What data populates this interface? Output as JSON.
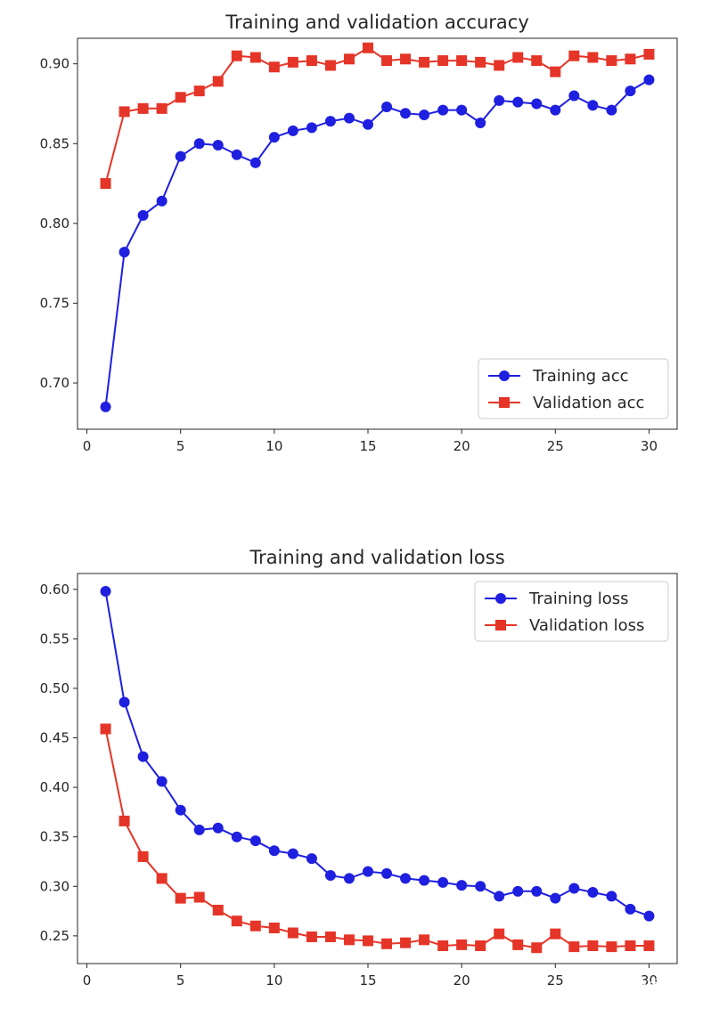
{
  "chart_data": [
    {
      "type": "line",
      "title": "Training and validation accuracy",
      "xlabel": "",
      "ylabel": "",
      "xlim": [
        -0.5,
        31.5
      ],
      "ylim": [
        0.671,
        0.916
      ],
      "xticks": [
        0,
        5,
        10,
        15,
        20,
        25,
        30
      ],
      "yticks": [
        0.7,
        0.75,
        0.8,
        0.85,
        0.9
      ],
      "ytick_labels": [
        "0.70",
        "0.75",
        "0.80",
        "0.85",
        "0.90"
      ],
      "legend_position": "lower-right",
      "x": [
        1,
        2,
        3,
        4,
        5,
        6,
        7,
        8,
        9,
        10,
        11,
        12,
        13,
        14,
        15,
        16,
        17,
        18,
        19,
        20,
        21,
        22,
        23,
        24,
        25,
        26,
        27,
        28,
        29,
        30
      ],
      "series": [
        {
          "name": "Training acc",
          "color": "#1f1fe0",
          "marker": "circle",
          "values": [
            0.685,
            0.782,
            0.805,
            0.814,
            0.842,
            0.85,
            0.849,
            0.843,
            0.838,
            0.854,
            0.858,
            0.86,
            0.864,
            0.866,
            0.862,
            0.873,
            0.869,
            0.868,
            0.871,
            0.871,
            0.863,
            0.877,
            0.876,
            0.875,
            0.871,
            0.88,
            0.874,
            0.871,
            0.883,
            0.89
          ]
        },
        {
          "name": "Validation acc",
          "color": "#e53528",
          "marker": "square",
          "values": [
            0.825,
            0.87,
            0.872,
            0.872,
            0.879,
            0.883,
            0.889,
            0.905,
            0.904,
            0.898,
            0.901,
            0.902,
            0.899,
            0.903,
            0.91,
            0.902,
            0.903,
            0.901,
            0.902,
            0.902,
            0.901,
            0.899,
            0.904,
            0.902,
            0.895,
            0.905,
            0.904,
            0.902,
            0.903,
            0.906
          ]
        }
      ]
    },
    {
      "type": "line",
      "title": "Training and validation loss",
      "xlabel": "",
      "ylabel": "",
      "xlim": [
        -0.5,
        31.5
      ],
      "ylim": [
        0.222,
        0.616
      ],
      "xticks": [
        0,
        5,
        10,
        15,
        20,
        25,
        30
      ],
      "yticks": [
        0.25,
        0.3,
        0.35,
        0.4,
        0.45,
        0.5,
        0.55,
        0.6
      ],
      "ytick_labels": [
        "0.25",
        "0.30",
        "0.35",
        "0.40",
        "0.45",
        "0.50",
        "0.55",
        "0.60"
      ],
      "legend_position": "upper-right",
      "x": [
        1,
        2,
        3,
        4,
        5,
        6,
        7,
        8,
        9,
        10,
        11,
        12,
        13,
        14,
        15,
        16,
        17,
        18,
        19,
        20,
        21,
        22,
        23,
        24,
        25,
        26,
        27,
        28,
        29,
        30
      ],
      "series": [
        {
          "name": "Training loss",
          "color": "#1f1fe0",
          "marker": "circle",
          "values": [
            0.598,
            0.486,
            0.431,
            0.406,
            0.377,
            0.357,
            0.359,
            0.35,
            0.346,
            0.336,
            0.333,
            0.328,
            0.311,
            0.308,
            0.315,
            0.313,
            0.308,
            0.306,
            0.304,
            0.301,
            0.3,
            0.29,
            0.295,
            0.295,
            0.288,
            0.298,
            0.294,
            0.29,
            0.277,
            0.27
          ]
        },
        {
          "name": "Validation loss",
          "color": "#e53528",
          "marker": "square",
          "values": [
            0.459,
            0.366,
            0.33,
            0.308,
            0.288,
            0.289,
            0.276,
            0.265,
            0.26,
            0.258,
            0.253,
            0.249,
            0.249,
            0.246,
            0.245,
            0.242,
            0.243,
            0.246,
            0.24,
            0.241,
            0.24,
            0.252,
            0.241,
            0.238,
            0.252,
            0.239,
            0.24,
            0.239,
            0.24,
            0.24
          ]
        }
      ]
    }
  ],
  "watermark": "@稀土掘金技术社区"
}
